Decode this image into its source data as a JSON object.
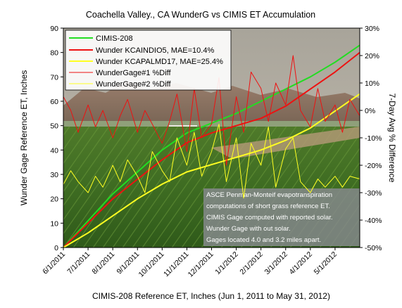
{
  "chart_data": {
    "type": "line",
    "title": "Coachella Valley., CA WunderG vs CIMIS  ET Accumulation",
    "xlabel": "CIMIS-208 Reference ET, Inches (Jun 1, 2011 to May 31, 2012)",
    "ylabel": "Wunder Gage Reference ET, Inches",
    "y2label": "7-Day Avg % Difference",
    "ylim": [
      0,
      90
    ],
    "yticks": [
      "0",
      "10",
      "20",
      "30",
      "40",
      "50",
      "60",
      "70",
      "80",
      "90"
    ],
    "y2lim": [
      -50,
      30
    ],
    "y2ticks": [
      "-50%",
      "-40%",
      "-30%",
      "-20%",
      "-10%",
      "0%",
      "10%",
      "20%",
      "30%"
    ],
    "xticks": [
      "6/1/2011",
      "7/1/2011",
      "8/1/2011",
      "9/1/2011",
      "10/1/2011",
      "11/1/2011",
      "12/1/2011",
      "1/1/2012",
      "2/1/2012",
      "3/1/2012",
      "4/1/2012",
      "5/1/2012"
    ],
    "legend_position": "top-left",
    "background": "photo of green agricultural field with mountains",
    "series": [
      {
        "name": "CIMIS-208",
        "color": "#22dd22",
        "axis": "left",
        "x_month_index": [
          0,
          1,
          2,
          3,
          4,
          5,
          6,
          7,
          8,
          9,
          10,
          11,
          12
        ],
        "values": [
          0,
          11,
          22,
          31,
          40,
          47,
          51,
          55,
          60,
          65,
          70,
          76,
          83
        ]
      },
      {
        "name": "Wunder KCAINDIO5, MAE=10.4%",
        "color": "#ee1111",
        "axis": "left",
        "x_month_index": [
          0,
          1,
          2,
          3,
          4,
          5,
          6,
          7,
          8,
          9,
          10,
          11,
          12
        ],
        "values": [
          0,
          10,
          20,
          28,
          36,
          43,
          47,
          50,
          53,
          58,
          65,
          72,
          80
        ]
      },
      {
        "name": "Wunder KCAPALMD17, MAE=25.4%",
        "color": "#ffff22",
        "axis": "left",
        "x_month_index": [
          0,
          1,
          2,
          3,
          4,
          5,
          6,
          7,
          8,
          9,
          10,
          11,
          12
        ],
        "values": [
          0,
          6,
          13,
          20,
          26,
          31,
          34,
          37,
          40,
          44,
          49,
          56,
          63
        ]
      },
      {
        "name": "WunderGage#1 %Diff",
        "color": "#ee1111",
        "axis": "right",
        "x_month_index": [
          0,
          0.3,
          0.6,
          1,
          1.3,
          1.6,
          2,
          2.3,
          2.6,
          3,
          3.3,
          3.6,
          4,
          4.3,
          4.6,
          5,
          5.3,
          5.6,
          6,
          6.3,
          6.6,
          7,
          7.3,
          7.6,
          8,
          8.3,
          8.6,
          9,
          9.3,
          9.6,
          10,
          10.3,
          10.6,
          11,
          11.3,
          11.6,
          12
        ],
        "values": [
          5,
          0,
          -8,
          2,
          -6,
          0,
          -10,
          -2,
          4,
          -8,
          0,
          -5,
          -12,
          -4,
          6,
          -15,
          8,
          -10,
          -5,
          12,
          -20,
          5,
          -8,
          14,
          8,
          -4,
          10,
          2,
          20,
          0,
          -6,
          8,
          -4,
          2,
          -8,
          4,
          -2
        ]
      },
      {
        "name": "WunderGage#2 %Diff",
        "color": "#ffff22",
        "axis": "right",
        "x_month_index": [
          0,
          0.3,
          0.6,
          1,
          1.3,
          1.6,
          2,
          2.3,
          2.6,
          3,
          3.3,
          3.6,
          4,
          4.3,
          4.6,
          5,
          5.3,
          5.6,
          6,
          6.3,
          6.6,
          7,
          7.3,
          7.6,
          8,
          8.3,
          8.6,
          9,
          9.3,
          9.6,
          10,
          10.3,
          10.6,
          11,
          11.3,
          11.6,
          12
        ],
        "values": [
          -27,
          -22,
          -26,
          -30,
          -24,
          -28,
          -20,
          -26,
          -18,
          -24,
          -30,
          -15,
          -22,
          -26,
          -10,
          -20,
          -8,
          -24,
          -15,
          -5,
          -26,
          -10,
          -32,
          -12,
          -20,
          -6,
          -28,
          -14,
          -10,
          -26,
          -30,
          -25,
          -28,
          -24,
          -28,
          -24,
          -25
        ]
      }
    ],
    "annotation": [
      "ASCE Penman-Monteif evapotranspiration",
      "computations of short grass reference ET.",
      "CIMIS Gage computed with reported solar.",
      "Wunder Gage with out solar.",
      "Gages located 4.0 and 3.2 miles apart."
    ]
  }
}
